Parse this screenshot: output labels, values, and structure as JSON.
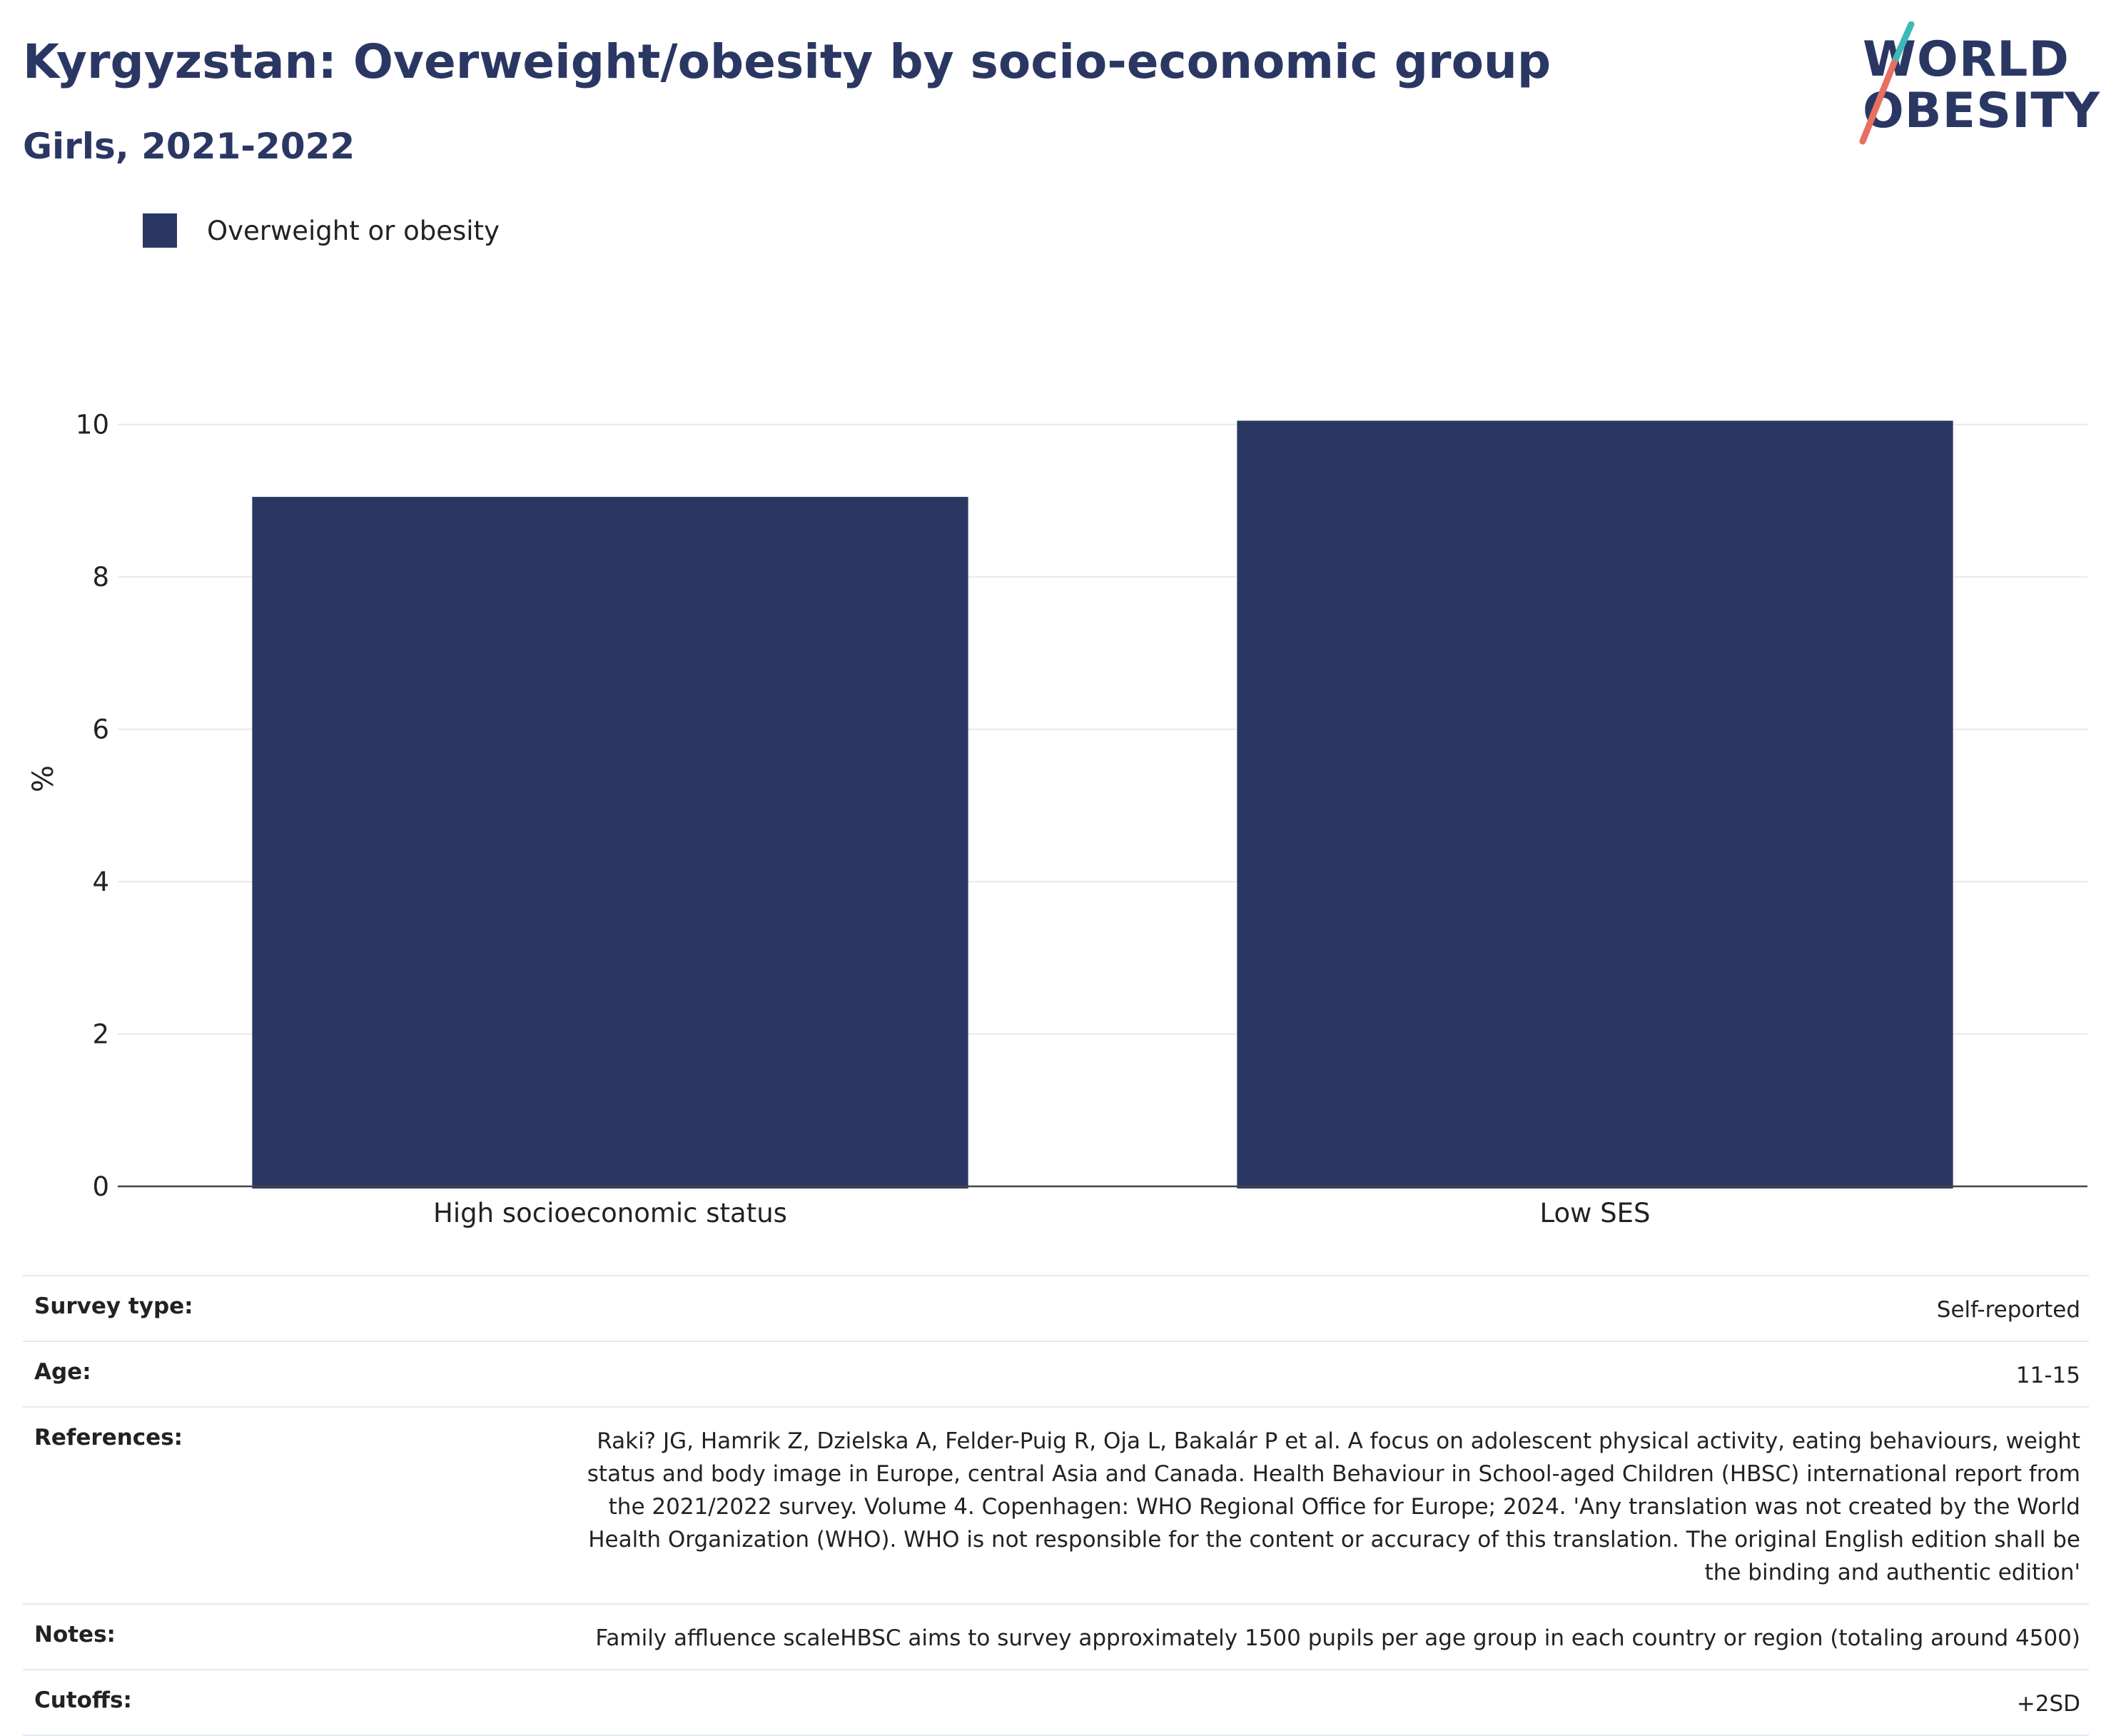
{
  "title": "Kyrgyzstan: Overweight/obesity by socio-economic group",
  "subtitle": "Girls, 2021-2022",
  "logo": {
    "line1": "WORLD",
    "line2": "OBESITY"
  },
  "legend": {
    "label": "Overweight or obesity",
    "color": "#2b3763"
  },
  "chart_data": {
    "type": "bar",
    "categories": [
      "High socioeconomic status",
      "Low SES"
    ],
    "series": [
      {
        "name": "Overweight or obesity",
        "values": [
          9.05,
          10.05
        ]
      }
    ],
    "ylabel": "%",
    "ylim": [
      0,
      10.7
    ],
    "yticks": [
      0,
      2,
      4,
      6,
      8,
      10
    ],
    "grid": true,
    "legend_position": "top-left",
    "bar_color": "#2b3763"
  },
  "meta": [
    {
      "label": "Survey type:",
      "value": "Self-reported"
    },
    {
      "label": "Age:",
      "value": "11-15"
    },
    {
      "label": "References:",
      "value": "Raki? JG, Hamrik Z, Dzielska A, Felder-Puig R, Oja L, Bakalár P et al. A focus on adolescent physical activity, eating behaviours, weight status and body image in Europe, central Asia and Canada. Health Behaviour in School-aged Children (HBSC) international report from the 2021/2022 survey. Volume 4. Copenhagen: WHO Regional Office for Europe; 2024. 'Any translation was not created by the World Health Organization (WHO). WHO is not responsible for the content or accuracy of this translation. The original English edition shall be the binding and authentic edition'"
    },
    {
      "label": "Notes:",
      "value": "Family affluence scaleHBSC aims to survey approximately 1500 pupils per age group in each country or region (totaling around 4500)"
    },
    {
      "label": "Cutoffs:",
      "value": "+2SD"
    }
  ]
}
